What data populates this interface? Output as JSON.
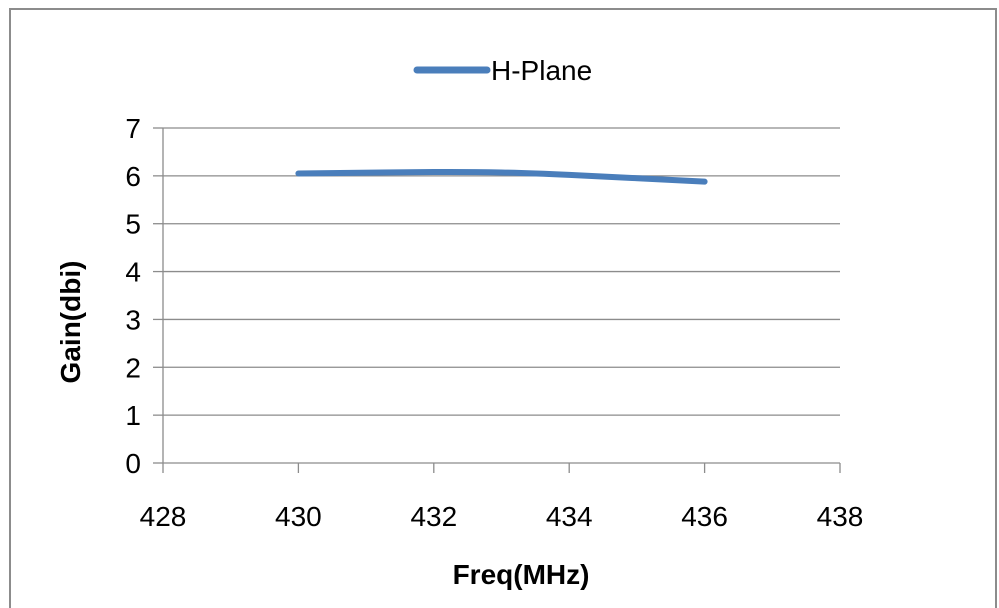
{
  "chart_data": {
    "type": "scatter",
    "xlabel": "Freq(MHz)",
    "ylabel": "Gain(dbi)",
    "xlim": [
      428,
      438
    ],
    "ylim": [
      0,
      7
    ],
    "xticks": [
      428,
      430,
      432,
      434,
      436,
      438
    ],
    "yticks": [
      0,
      1,
      2,
      3,
      4,
      5,
      6,
      7
    ],
    "grid": "horizontal",
    "legend_position": "top",
    "series": [
      {
        "name": "H-Plane",
        "color": "#4a7ebb",
        "smooth": true,
        "x": [
          430,
          432,
          433,
          434,
          436
        ],
        "y": [
          6.05,
          6.08,
          6.07,
          6.02,
          5.88
        ]
      }
    ]
  }
}
